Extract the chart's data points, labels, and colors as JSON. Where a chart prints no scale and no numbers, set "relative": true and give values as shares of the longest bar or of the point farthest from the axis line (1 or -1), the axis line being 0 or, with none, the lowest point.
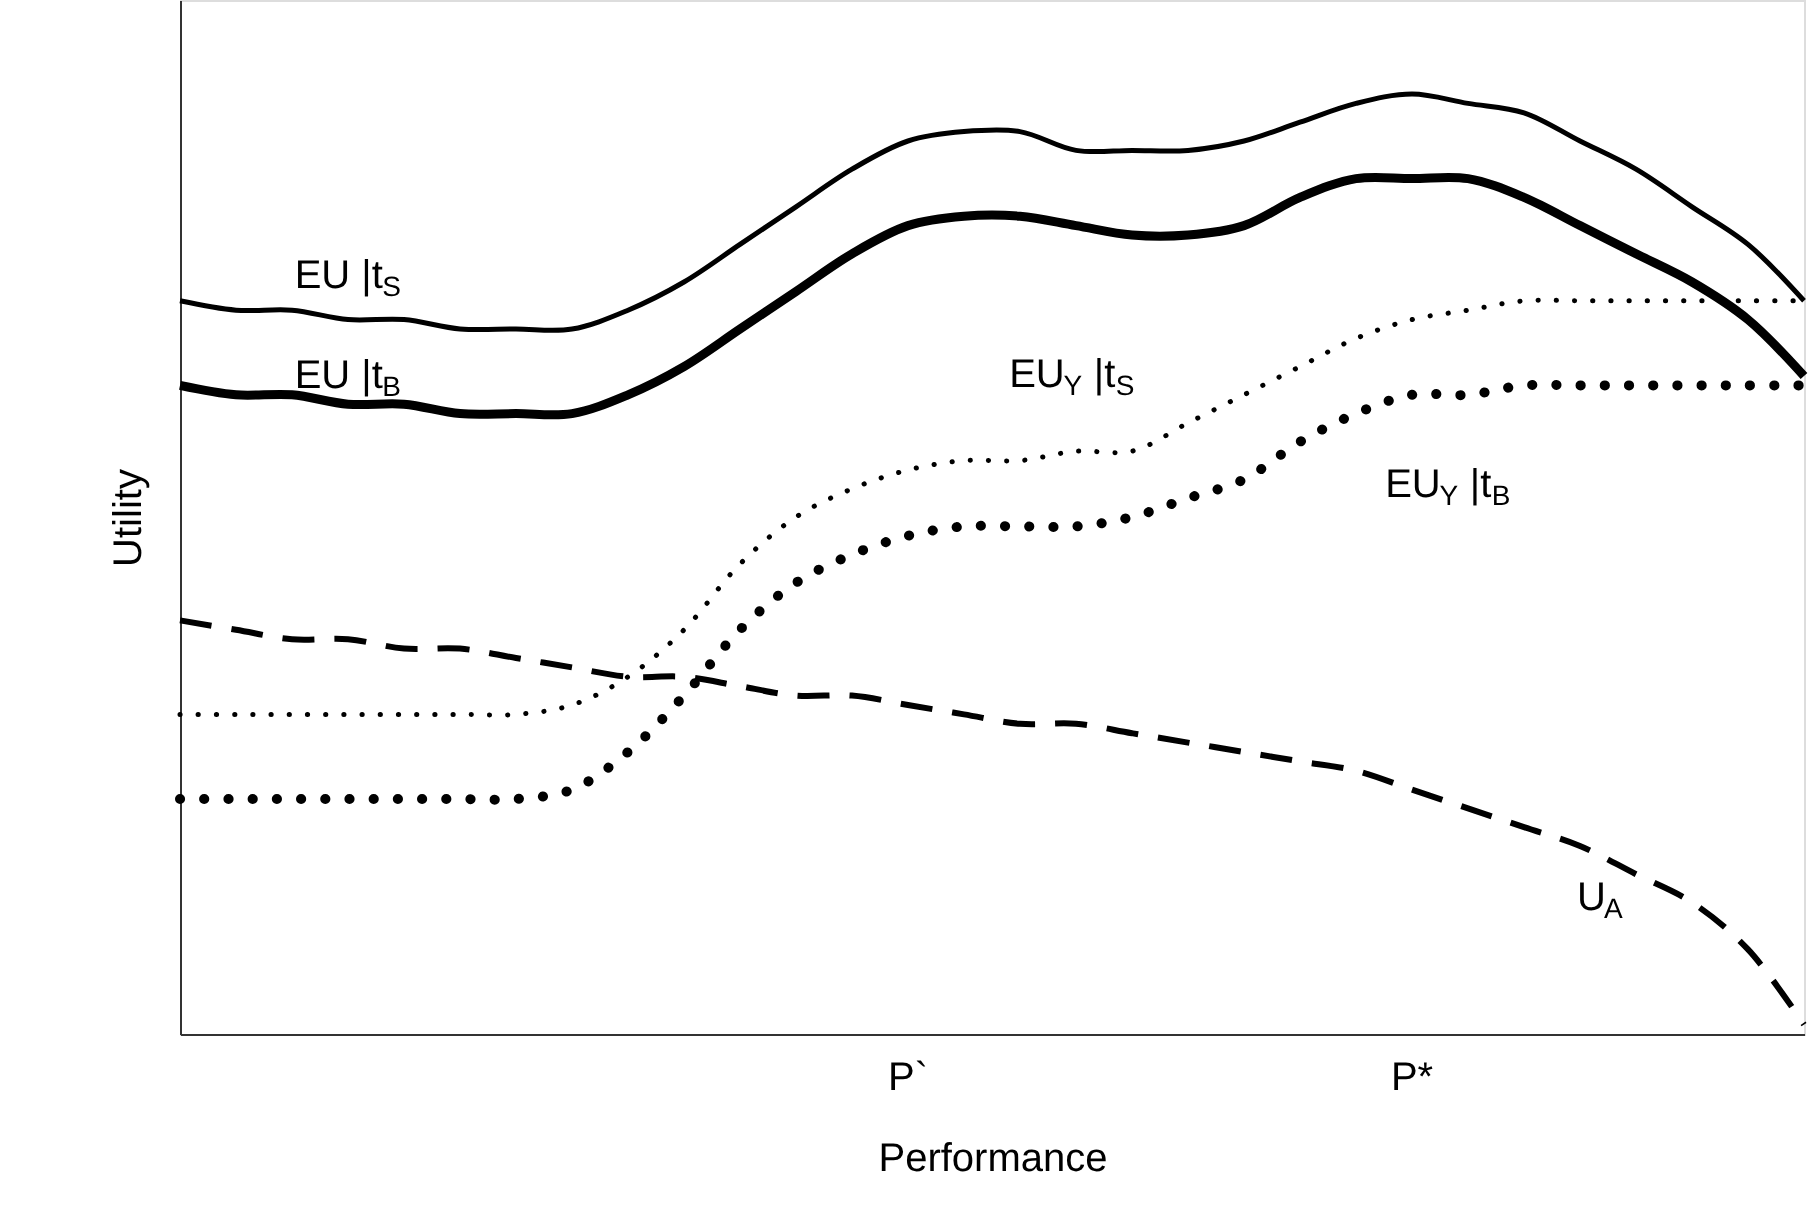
{
  "chart_data": {
    "type": "line",
    "relative": true,
    "xlabel": "Performance",
    "ylabel": "Utility",
    "categories": [
      null,
      null,
      null,
      null,
      null,
      null,
      null,
      null,
      null,
      null,
      null,
      null,
      null,
      "P`",
      null,
      null,
      null,
      null,
      null,
      null,
      null,
      null,
      "P*",
      null,
      null,
      null,
      null,
      null,
      null,
      null
    ],
    "series": [
      {
        "name": "EU |t$_{S}$",
        "color": "#000000",
        "line_style": "solid",
        "values": [
          0.78,
          0.77,
          0.77,
          0.76,
          0.76,
          0.75,
          0.75,
          0.75,
          0.77,
          0.8,
          0.84,
          0.88,
          0.92,
          0.95,
          0.96,
          0.96,
          0.94,
          0.94,
          0.94,
          0.95,
          0.97,
          0.99,
          1.0,
          0.99,
          0.98,
          0.95,
          0.92,
          0.88,
          0.84,
          0.78
        ]
      },
      {
        "name": "EU |t$_{B}$",
        "color": "#000000",
        "line_style": "solid",
        "values": [
          0.69,
          0.68,
          0.68,
          0.67,
          0.67,
          0.66,
          0.66,
          0.66,
          0.68,
          0.71,
          0.75,
          0.79,
          0.83,
          0.86,
          0.87,
          0.87,
          0.86,
          0.85,
          0.85,
          0.86,
          0.89,
          0.91,
          0.91,
          0.91,
          0.89,
          0.86,
          0.83,
          0.8,
          0.76,
          0.7
        ]
      },
      {
        "name": "EU$_{Y}$ |t$_{S}$",
        "color": "#000000",
        "line_style": "dotted",
        "values": [
          0.34,
          0.34,
          0.34,
          0.34,
          0.34,
          0.34,
          0.34,
          0.35,
          0.38,
          0.43,
          0.5,
          0.55,
          0.58,
          0.6,
          0.61,
          0.61,
          0.62,
          0.62,
          0.65,
          0.68,
          0.71,
          0.74,
          0.76,
          0.77,
          0.78,
          0.78,
          0.78,
          0.78,
          0.78,
          0.78
        ]
      },
      {
        "name": "EU$_{Y}$ |t$_{B}$",
        "color": "#000000",
        "line_style": "dotted",
        "values": [
          0.25,
          0.25,
          0.25,
          0.25,
          0.25,
          0.25,
          0.25,
          0.26,
          0.3,
          0.36,
          0.43,
          0.48,
          0.51,
          0.53,
          0.54,
          0.54,
          0.54,
          0.55,
          0.57,
          0.59,
          0.63,
          0.66,
          0.68,
          0.68,
          0.69,
          0.69,
          0.69,
          0.69,
          0.69,
          0.69
        ]
      },
      {
        "name": "U$_{A}$",
        "color": "#000000",
        "line_style": "dashed",
        "values": [
          0.44,
          0.43,
          0.42,
          0.42,
          0.41,
          0.41,
          0.4,
          0.39,
          0.38,
          0.38,
          0.37,
          0.36,
          0.36,
          0.35,
          0.34,
          0.33,
          0.33,
          0.32,
          0.31,
          0.3,
          0.29,
          0.28,
          0.26,
          0.24,
          0.22,
          0.2,
          0.17,
          0.14,
          0.09,
          0.01
        ]
      }
    ]
  }
}
